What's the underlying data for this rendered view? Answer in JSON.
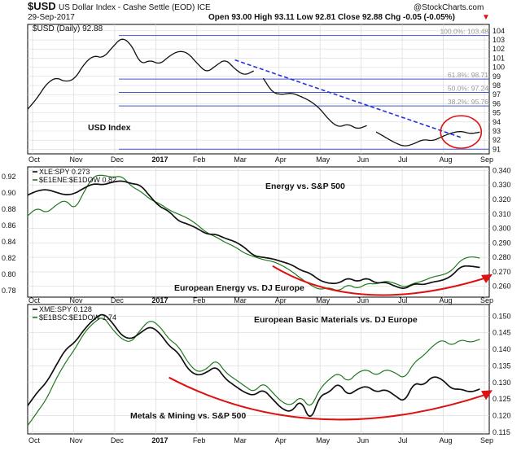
{
  "header": {
    "symbol": "$USD",
    "name": "US Dollar Index - Cashe Settle (EOD) ICE",
    "date": "29-Sep-2017",
    "watermark": "@StockCharts.com",
    "quote": "Open 93.00  High 93.11  Low 92.81  Close 92.88  Chg -0.05 (-0.05%)",
    "change_marker": "▼"
  },
  "colors": {
    "usd_line": "#111111",
    "trend": "#2233dd",
    "fib_line": "#4455cc",
    "fib_label": "#9a9a9a",
    "circle": "#dd1111",
    "arc": "#dd1111",
    "primary_series": "#111111",
    "secondary_series": "#1f7a1f",
    "grid": "#d9d9d9"
  },
  "months": [
    "Oct",
    "Nov",
    "Dec",
    "2017",
    "Feb",
    "Mar",
    "Apr",
    "May",
    "Jun",
    "Jul",
    "Aug",
    "Sep"
  ],
  "chart_data": [
    {
      "type": "line",
      "legend": [
        "$USD (Daily) 92.88"
      ],
      "annotation": "USD Index",
      "y_ticks": [
        "91",
        "92",
        "93",
        "94",
        "95",
        "96",
        "97",
        "98",
        "99",
        "100",
        "101",
        "102",
        "103",
        "104"
      ],
      "ylim": [
        90.5,
        104.7
      ],
      "fib_labels": [
        {
          "text": "100.0%: 103.48",
          "value": 103.48
        },
        {
          "text": "61.8%: 98.71",
          "value": 98.71
        },
        {
          "text": "50.0%: 97.24",
          "value": 97.24
        },
        {
          "text": "38.2%: 95.76",
          "value": 95.76
        }
      ],
      "fib_lines": [
        103.48,
        98.71,
        97.24,
        95.76,
        91.01
      ],
      "series": [
        {
          "x": [
            0,
            1,
            2,
            3,
            4,
            5,
            6,
            7,
            8,
            9,
            10,
            11,
            12,
            13,
            14,
            15,
            16,
            17,
            18,
            19,
            20,
            21,
            22,
            23,
            24
          ],
          "values": [
            95.4,
            96.6,
            98.2,
            98.9,
            98.4,
            98.7,
            100.4,
            101.3,
            101.0,
            102.2,
            103.3,
            102.5,
            100.3,
            100.8,
            100.3,
            101.2,
            101.8,
            101.6,
            100.4,
            99.4,
            100.2,
            100.9,
            99.8,
            99.1,
            99.6
          ]
        },
        {
          "x": [
            25,
            26,
            27,
            28,
            29,
            30,
            31,
            32,
            33,
            34,
            35,
            36
          ],
          "values": [
            98.8,
            97.2,
            97.0,
            97.2,
            96.8,
            96.3,
            95.5,
            94.2,
            93.4,
            93.8,
            93.2,
            93.6
          ]
        },
        {
          "x": [
            37,
            38,
            39,
            40,
            41,
            42,
            43,
            44,
            45,
            46,
            47,
            48
          ],
          "values": [
            92.9,
            92.3,
            91.7,
            91.3,
            91.6,
            92.1,
            91.9,
            92.4,
            92.8,
            93.0,
            92.7,
            92.88
          ]
        }
      ],
      "trendline": {
        "x": [
          22,
          46
        ],
        "y": [
          100.8,
          92.3
        ]
      },
      "circle_center": {
        "x": 46,
        "y": 92.9
      }
    },
    {
      "type": "line",
      "legend": [
        "XLE:SPY 0.273",
        "$E1ENE:$E1DOW 0.82"
      ],
      "annotations": [
        "Energy vs. S&P 500",
        "European Energy vs. DJ Europe"
      ],
      "left_ticks": [
        "0.78",
        "0.80",
        "0.82",
        "0.84",
        "0.86",
        "0.88",
        "0.90",
        "0.92"
      ],
      "right_ticks": [
        "0.260",
        "0.270",
        "0.280",
        "0.290",
        "0.300",
        "0.310",
        "0.320",
        "0.330",
        "0.340"
      ],
      "ylim_left": [
        0.772,
        0.932
      ],
      "ylim_right": [
        0.2525,
        0.3425
      ],
      "series": [
        {
          "name": "XLE:SPY",
          "axis": "right",
          "x": [
            0,
            1,
            2,
            3,
            4,
            5,
            6,
            7,
            8,
            9,
            10,
            11,
            12,
            13,
            14,
            15,
            16,
            17,
            18,
            19,
            20,
            21,
            22,
            23,
            24,
            25,
            26,
            27,
            28,
            29,
            30,
            31,
            32,
            33,
            34,
            35,
            36,
            37,
            38,
            39,
            40,
            41,
            42,
            43,
            44,
            45,
            46,
            47,
            48
          ],
          "values": [
            0.323,
            0.326,
            0.327,
            0.325,
            0.323,
            0.324,
            0.328,
            0.331,
            0.33,
            0.332,
            0.333,
            0.331,
            0.33,
            0.322,
            0.315,
            0.312,
            0.305,
            0.303,
            0.3,
            0.296,
            0.296,
            0.293,
            0.291,
            0.287,
            0.281,
            0.28,
            0.279,
            0.277,
            0.275,
            0.271,
            0.269,
            0.264,
            0.262,
            0.262,
            0.266,
            0.263,
            0.266,
            0.262,
            0.263,
            0.26,
            0.258,
            0.262,
            0.261,
            0.263,
            0.264,
            0.267,
            0.274,
            0.274,
            0.273
          ]
        },
        {
          "name": "$E1ENE:$E1DOW",
          "axis": "left",
          "x": [
            0,
            1,
            2,
            3,
            4,
            5,
            6,
            7,
            8,
            9,
            10,
            11,
            12,
            13,
            14,
            15,
            16,
            17,
            18,
            19,
            20,
            21,
            22,
            23,
            24,
            25,
            26,
            27,
            28,
            29,
            30,
            31,
            32,
            33,
            34,
            35,
            36,
            37,
            38,
            39,
            40,
            41,
            42,
            43,
            44,
            45,
            46,
            47,
            48
          ],
          "values": [
            0.872,
            0.882,
            0.875,
            0.885,
            0.892,
            0.879,
            0.902,
            0.921,
            0.922,
            0.919,
            0.921,
            0.908,
            0.902,
            0.892,
            0.887,
            0.879,
            0.874,
            0.869,
            0.861,
            0.851,
            0.846,
            0.839,
            0.834,
            0.826,
            0.822,
            0.818,
            0.816,
            0.811,
            0.804,
            0.795,
            0.787,
            0.781,
            0.784,
            0.779,
            0.788,
            0.782,
            0.789,
            0.788,
            0.792,
            0.789,
            0.784,
            0.789,
            0.792,
            0.797,
            0.799,
            0.804,
            0.818,
            0.822,
            0.82
          ]
        }
      ],
      "arc": {
        "x": [
          26,
          35,
          49
        ],
        "y_right": [
          0.274,
          0.251,
          0.2655
        ]
      }
    },
    {
      "type": "line",
      "legend": [
        "XME:SPY 0.128",
        "$E1BSC:$E1DOW 1.74"
      ],
      "annotations": [
        "European Basic Materials vs. DJ Europe",
        "Metals & Mining vs. S&P 500"
      ],
      "right_ticks": [
        "0.115",
        "0.120",
        "0.125",
        "0.130",
        "0.135",
        "0.140",
        "0.145",
        "0.150"
      ],
      "ylim_right": [
        0.1145,
        0.1535
      ],
      "series": [
        {
          "name": "XME:SPY",
          "axis": "right",
          "x": [
            0,
            1,
            2,
            3,
            4,
            5,
            6,
            7,
            8,
            9,
            10,
            11,
            12,
            13,
            14,
            15,
            16,
            17,
            18,
            19,
            20,
            21,
            22,
            23,
            24,
            25,
            26,
            27,
            28,
            29,
            30,
            31,
            32,
            33,
            34,
            35,
            36,
            37,
            38,
            39,
            40,
            41,
            42,
            43,
            44,
            45,
            46,
            47,
            48
          ],
          "values": [
            0.123,
            0.127,
            0.13,
            0.135,
            0.14,
            0.142,
            0.146,
            0.149,
            0.151,
            0.148,
            0.144,
            0.143,
            0.145,
            0.147,
            0.145,
            0.141,
            0.139,
            0.134,
            0.132,
            0.133,
            0.135,
            0.131,
            0.129,
            0.127,
            0.126,
            0.128,
            0.125,
            0.122,
            0.121,
            0.125,
            0.118,
            0.126,
            0.127,
            0.13,
            0.126,
            0.128,
            0.129,
            0.127,
            0.128,
            0.126,
            0.124,
            0.13,
            0.129,
            0.132,
            0.131,
            0.128,
            0.128,
            0.127,
            0.128
          ]
        },
        {
          "name": "$E1BSC:$E1DOW",
          "axis": "right",
          "x": [
            0,
            1,
            2,
            3,
            4,
            5,
            6,
            7,
            8,
            9,
            10,
            11,
            12,
            13,
            14,
            15,
            16,
            17,
            18,
            19,
            20,
            21,
            22,
            23,
            24,
            25,
            26,
            27,
            28,
            29,
            30,
            31,
            32,
            33,
            34,
            35,
            36,
            37,
            38,
            39,
            40,
            41,
            42,
            43,
            44,
            45,
            46,
            47,
            48
          ],
          "values": [
            0.117,
            0.121,
            0.125,
            0.131,
            0.136,
            0.14,
            0.145,
            0.148,
            0.15,
            0.146,
            0.143,
            0.142,
            0.146,
            0.149,
            0.147,
            0.143,
            0.141,
            0.136,
            0.133,
            0.134,
            0.137,
            0.133,
            0.131,
            0.129,
            0.127,
            0.13,
            0.127,
            0.124,
            0.123,
            0.126,
            0.122,
            0.128,
            0.131,
            0.133,
            0.13,
            0.133,
            0.134,
            0.132,
            0.134,
            0.133,
            0.131,
            0.136,
            0.138,
            0.141,
            0.143,
            0.141,
            0.143,
            0.142,
            0.143
          ]
        }
      ],
      "arc": {
        "x": [
          15,
          30,
          49
        ],
        "y_right": [
          0.1315,
          0.1155,
          0.1262
        ]
      }
    }
  ]
}
